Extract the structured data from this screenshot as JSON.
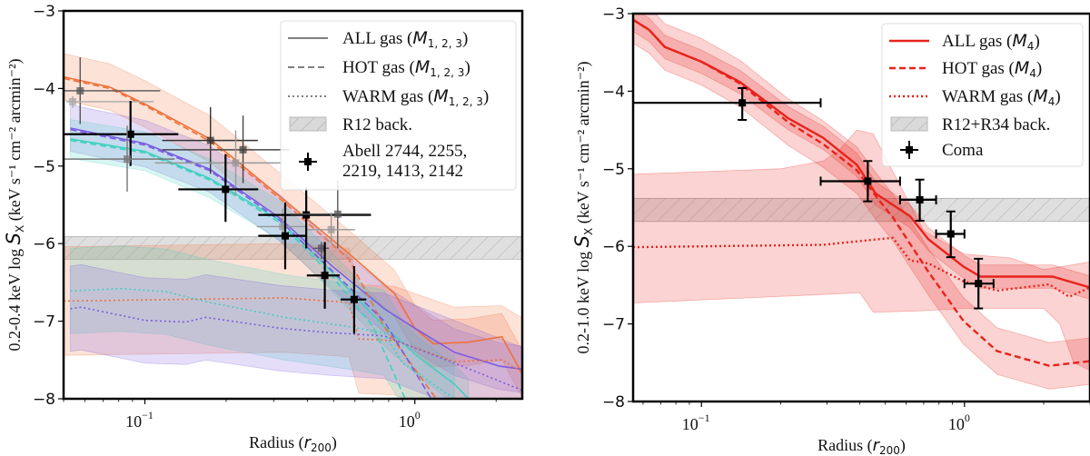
{
  "chart_data": [
    {
      "type": "line",
      "x_scale": "log",
      "xlim": [
        0.05,
        2.5
      ],
      "ylim": [
        -8,
        -3
      ],
      "grid": false,
      "legend_placement": "top-right",
      "xlabel": {
        "text": "Radius (",
        "sym": "r",
        "sub": "200",
        "end": ")"
      },
      "ylabel": {
        "prefix": "0.2-0.4 keV log ",
        "sym": "S",
        "sub": "X",
        "units": " (keV s⁻¹ cm⁻² arcmin⁻²)"
      },
      "yticks": [
        "-3",
        "-4",
        "-5",
        "-6",
        "-7",
        "-8"
      ],
      "xticks": [
        {
          "base": "10",
          "exp": "-1"
        },
        {
          "base": "10",
          "exp": "0"
        }
      ],
      "legend": [
        {
          "text": "ALL gas (",
          "sym": "M",
          "sub": "1, 2, 3",
          "end": ")",
          "style": "solid"
        },
        {
          "text": "HOT gas (",
          "sym": "M",
          "sub": "1, 2, 3",
          "end": ")",
          "style": "dashed"
        },
        {
          "text": "WARM gas (",
          "sym": "M",
          "sub": "1, 2, 3",
          "end": ")",
          "style": "dotted"
        },
        {
          "text": "R12 back.",
          "style": "hatch"
        },
        {
          "text": "Abell 2744, 2255,",
          "text2": "2219, 1413, 2142",
          "style": "errorbar"
        }
      ],
      "background_band": {
        "y_low": -6.2,
        "y_high": -5.91,
        "color": "#c8c8c8"
      },
      "series": [
        {
          "group": "orange",
          "kind": "ALL",
          "color": "#f07038",
          "band_halfwidth": 0.3,
          "x": [
            0.05,
            0.074,
            0.1,
            0.174,
            0.316,
            0.57,
            0.84,
            1.0,
            1.17,
            1.58,
            2.1,
            2.5
          ],
          "y": [
            -3.85,
            -3.98,
            -4.2,
            -4.65,
            -5.39,
            -6.13,
            -6.64,
            -7.09,
            -7.29,
            -7.27,
            -7.2,
            -7.68
          ]
        },
        {
          "group": "purple",
          "kind": "ALL",
          "color": "#7b5ce0",
          "band_halfwidth": 0.3,
          "x": [
            0.053,
            0.1,
            0.174,
            0.316,
            0.494,
            0.77,
            1.0,
            1.4,
            2.06,
            2.5
          ],
          "y": [
            -4.51,
            -4.71,
            -5.04,
            -5.67,
            -6.29,
            -6.84,
            -7.09,
            -7.4,
            -7.58,
            -7.62
          ]
        },
        {
          "group": "cyan",
          "kind": "ALL",
          "color": "#40d0c0",
          "band_halfwidth": 0.25,
          "x": [
            0.053,
            0.1,
            0.174,
            0.316,
            0.494,
            0.77,
            1.03,
            1.4,
            1.58
          ],
          "y": [
            -4.65,
            -4.81,
            -5.16,
            -5.7,
            -6.37,
            -7.07,
            -7.46,
            -7.81,
            -8.0
          ]
        },
        {
          "group": "orange",
          "kind": "HOT",
          "color": "#f07038",
          "x": [
            0.05,
            0.074,
            0.1,
            0.174,
            0.316,
            0.57,
            0.77,
            1.2
          ],
          "y": [
            -3.87,
            -4.0,
            -4.22,
            -4.68,
            -5.42,
            -6.2,
            -7.07,
            -8.0
          ]
        },
        {
          "group": "purple",
          "kind": "HOT",
          "color": "#7b5ce0",
          "x": [
            0.053,
            0.1,
            0.174,
            0.316,
            0.494,
            0.77,
            1.15
          ],
          "y": [
            -4.53,
            -4.73,
            -5.06,
            -5.7,
            -6.35,
            -7.0,
            -8.0
          ]
        },
        {
          "group": "cyan",
          "kind": "HOT",
          "color": "#40d0c0",
          "x": [
            0.053,
            0.1,
            0.174,
            0.316,
            0.494,
            0.7,
            0.92
          ],
          "y": [
            -4.67,
            -4.83,
            -5.18,
            -5.73,
            -6.42,
            -7.07,
            -8.0
          ]
        },
        {
          "group": "orange",
          "kind": "WARM",
          "color": "#f07038",
          "band_halfwidth": 0.7,
          "x": [
            0.05,
            0.33,
            0.57,
            0.62,
            0.84,
            1.4,
            2.1,
            2.5
          ],
          "y": [
            -6.74,
            -6.7,
            -6.76,
            -7.23,
            -7.25,
            -7.52,
            -7.5,
            -7.66
          ]
        },
        {
          "group": "cyan",
          "kind": "WARM",
          "color": "#40d0c0",
          "band_halfwidth": 0.55,
          "x": [
            0.053,
            0.081,
            0.12,
            0.174,
            0.33,
            0.57,
            0.77,
            0.9,
            1.4
          ],
          "y": [
            -6.61,
            -6.58,
            -6.62,
            -6.76,
            -6.95,
            -7.07,
            -7.15,
            -7.54,
            -8.0
          ]
        },
        {
          "group": "purple",
          "kind": "WARM",
          "color": "#7b5ce0",
          "band_halfwidth": 0.55,
          "x": [
            0.053,
            0.058,
            0.1,
            0.142,
            0.168,
            0.316,
            0.494,
            0.77,
            1.4,
            2.5
          ],
          "y": [
            -6.84,
            -6.82,
            -6.99,
            -7.01,
            -6.95,
            -7.09,
            -7.15,
            -7.19,
            -7.54,
            -7.89
          ]
        }
      ],
      "points": [
        {
          "x": 0.0576,
          "y": -4.03,
          "xlo": 0.0504,
          "xhi": 0.114,
          "ylo": -4.46,
          "yhi": -3.6,
          "shade": "#555"
        },
        {
          "x": 0.054,
          "y": -4.17,
          "xlo": 0.0512,
          "xhi": 0.108,
          "ylo": -4.25,
          "yhi": -4.1,
          "shade": "#aaa"
        },
        {
          "x": 0.0885,
          "y": -4.59,
          "xlo": 0.0504,
          "xhi": 0.133,
          "ylo": -5.0,
          "yhi": -4.16,
          "shade": "#000"
        },
        {
          "x": 0.086,
          "y": -4.91,
          "xlo": 0.05,
          "xhi": 0.129,
          "ylo": -5.33,
          "yhi": -4.48,
          "shade": "#777"
        },
        {
          "x": 0.175,
          "y": -4.67,
          "xlo": 0.116,
          "xhi": 0.262,
          "ylo": -5.1,
          "yhi": -4.24,
          "shade": "#333"
        },
        {
          "x": 0.231,
          "y": -4.79,
          "xlo": 0.116,
          "xhi": 0.343,
          "ylo": -5.22,
          "yhi": -4.35,
          "shade": "#444"
        },
        {
          "x": 0.217,
          "y": -4.96,
          "xlo": 0.109,
          "xhi": 0.32,
          "ylo": -5.38,
          "yhi": -4.54,
          "shade": "#999"
        },
        {
          "x": 0.199,
          "y": -5.3,
          "xlo": 0.133,
          "xhi": 0.263,
          "ylo": -5.72,
          "yhi": -4.85,
          "shade": "#000"
        },
        {
          "x": 0.324,
          "y": -5.78,
          "xlo": 0.26,
          "xhi": 0.4,
          "ylo": -6.0,
          "yhi": -5.55,
          "shade": "#999"
        },
        {
          "x": 0.331,
          "y": -5.9,
          "xlo": 0.263,
          "xhi": 0.396,
          "ylo": -6.33,
          "yhi": -5.47,
          "shade": "#000"
        },
        {
          "x": 0.396,
          "y": -5.63,
          "xlo": 0.263,
          "xhi": 0.688,
          "ylo": -6.06,
          "yhi": -5.28,
          "shade": "#000"
        },
        {
          "x": 0.518,
          "y": -5.62,
          "xlo": 0.345,
          "xhi": 0.688,
          "ylo": -6.06,
          "yhi": -5.19,
          "shade": "#555"
        },
        {
          "x": 0.49,
          "y": -5.82,
          "xlo": 0.4,
          "xhi": 0.6,
          "ylo": -6.0,
          "yhi": -5.6,
          "shade": "#999"
        },
        {
          "x": 0.451,
          "y": -6.06,
          "xlo": 0.42,
          "xhi": 0.48,
          "ylo": -6.2,
          "yhi": -5.98,
          "shade": "#556"
        },
        {
          "x": 0.464,
          "y": -6.41,
          "xlo": 0.398,
          "xhi": 0.527,
          "ylo": -6.84,
          "yhi": -5.98,
          "shade": "#000"
        },
        {
          "x": 0.596,
          "y": -6.72,
          "xlo": 0.531,
          "xhi": 0.661,
          "ylo": -7.16,
          "yhi": -6.29,
          "shade": "#000"
        }
      ]
    },
    {
      "type": "line",
      "x_scale": "log",
      "xlim": [
        0.055,
        3.0
      ],
      "ylim": [
        -8,
        -3
      ],
      "grid": false,
      "legend_placement": "top-right",
      "xlabel": {
        "text": "Radius (",
        "sym": "r",
        "sub": "200",
        "end": ")"
      },
      "ylabel": {
        "prefix": "0.2-1.0 keV log ",
        "sym": "S",
        "sub": "X",
        "units": " (keV s⁻¹ cm⁻² arcmin⁻²)"
      },
      "yticks": [
        "-3",
        "-4",
        "-5",
        "-6",
        "-7",
        "-8"
      ],
      "xticks": [
        {
          "base": "10",
          "exp": "-1"
        },
        {
          "base": "10",
          "exp": "0"
        }
      ],
      "legend": [
        {
          "text": "ALL gas (",
          "sym": "M",
          "sub": "4",
          "end": ")",
          "style": "solid"
        },
        {
          "text": "HOT gas (",
          "sym": "M",
          "sub": "4",
          "end": ")",
          "style": "dashed"
        },
        {
          "text": "WARM gas (",
          "sym": "M",
          "sub": "4",
          "end": ")",
          "style": "dotted"
        },
        {
          "text": "R12+R34 back.",
          "style": "hatch"
        },
        {
          "text": "Coma",
          "style": "errorbar"
        }
      ],
      "background_band": {
        "y_low": -5.68,
        "y_high": -5.38,
        "color": "#c8c8c8"
      },
      "series": [
        {
          "kind": "ALL",
          "color": "#e8231c",
          "band_halfwidth": 0.15,
          "x": [
            0.055,
            0.0633,
            0.0726,
            0.1,
            0.14,
            0.214,
            0.29,
            0.39,
            0.46,
            0.62,
            0.73,
            0.99,
            1.15,
            1.55,
            2.16,
            3.0
          ],
          "y": [
            -3.08,
            -3.21,
            -3.43,
            -3.62,
            -3.88,
            -4.35,
            -4.6,
            -4.95,
            -5.32,
            -5.61,
            -5.91,
            -6.26,
            -6.39,
            -6.39,
            -6.39,
            -6.53
          ]
        },
        {
          "kind": "HOT",
          "color": "#e8231c",
          "band_halfwidth": 0.3,
          "x": [
            0.055,
            0.0633,
            0.0726,
            0.1,
            0.14,
            0.214,
            0.29,
            0.39,
            0.46,
            0.535,
            0.73,
            0.99,
            1.33,
            2.1,
            3.0
          ],
          "y": [
            -3.08,
            -3.21,
            -3.43,
            -3.62,
            -3.9,
            -4.4,
            -4.68,
            -5.02,
            -5.35,
            -5.63,
            -6.33,
            -6.96,
            -7.35,
            -7.54,
            -7.48
          ]
        },
        {
          "kind": "WARM",
          "color": "#e8231c",
          "band_upper": {
            "x": [
              0.055,
              0.2,
              0.29,
              0.33,
              0.39,
              0.45,
              0.7,
              1.0,
              1.5,
              2.0,
              3.0
            ],
            "y": [
              -5.07,
              -5.0,
              -4.9,
              -4.78,
              -4.5,
              -4.55,
              -5.8,
              -6.1,
              -6.15,
              -6.3,
              -6.2
            ]
          },
          "band_lower": {
            "x": [
              0.055,
              0.4,
              0.45,
              0.7,
              1.0,
              1.5,
              2.0,
              2.3,
              2.6,
              3.0
            ],
            "y": [
              -6.73,
              -6.6,
              -6.85,
              -6.83,
              -6.8,
              -6.8,
              -6.8,
              -7.0,
              -7.5,
              -7.6
            ]
          },
          "x": [
            0.055,
            0.1,
            0.29,
            0.535,
            0.62,
            0.73,
            0.99,
            1.33,
            2.1,
            2.5,
            3.0
          ],
          "y": [
            -6.01,
            -6.0,
            -5.98,
            -5.89,
            -6.18,
            -6.22,
            -6.45,
            -6.57,
            -6.49,
            -6.65,
            -6.53
          ]
        }
      ],
      "points": [
        {
          "x": 0.143,
          "y": -4.15,
          "xlo": 0.0548,
          "xhi": 0.284,
          "ylo": -4.37,
          "yhi": -3.96,
          "shade": "#000"
        },
        {
          "x": 0.429,
          "y": -5.16,
          "xlo": 0.284,
          "xhi": 0.569,
          "ylo": -5.42,
          "yhi": -4.9,
          "shade": "#000"
        },
        {
          "x": 0.676,
          "y": -5.4,
          "xlo": 0.569,
          "xhi": 0.78,
          "ylo": -5.67,
          "yhi": -5.14,
          "shade": "#000"
        },
        {
          "x": 0.887,
          "y": -5.84,
          "xlo": 0.78,
          "xhi": 1.0,
          "ylo": -6.14,
          "yhi": -5.55,
          "shade": "#000"
        },
        {
          "x": 1.13,
          "y": -6.48,
          "xlo": 1.0,
          "xhi": 1.29,
          "ylo": -6.8,
          "yhi": -6.16,
          "shade": "#000"
        }
      ]
    }
  ]
}
